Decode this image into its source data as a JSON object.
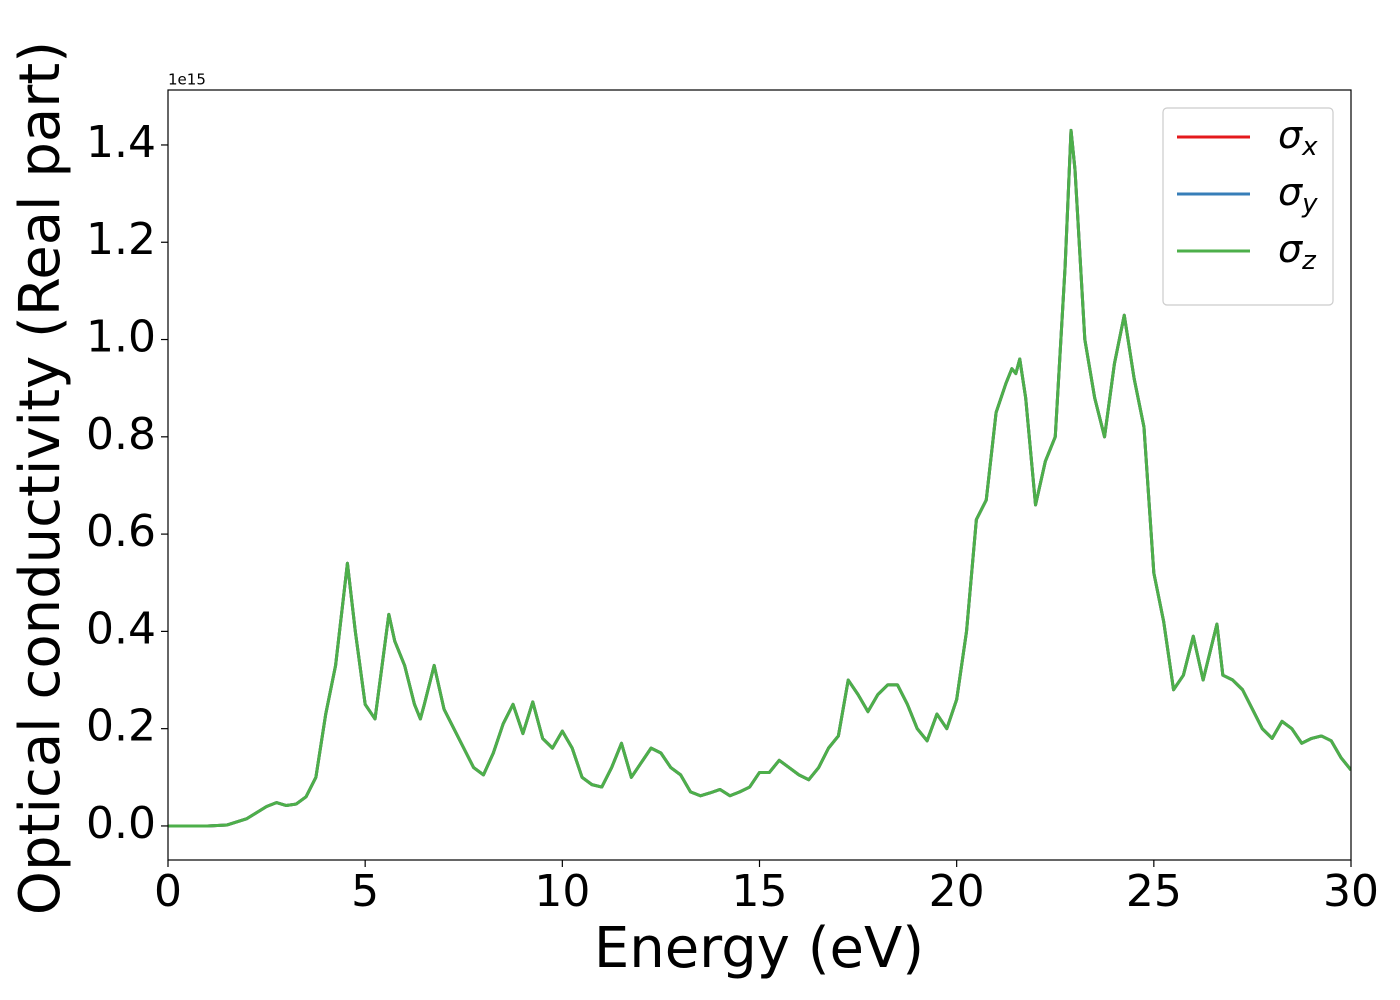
{
  "chart_data": {
    "type": "line",
    "xlabel": "Energy (eV)",
    "ylabel": "Optical conductivity (Real part)",
    "y_offset_label": "1e15",
    "x": [
      0,
      1,
      1.5,
      2,
      2.5,
      2.75,
      3,
      3.25,
      3.5,
      3.75,
      4,
      4.25,
      4.55,
      4.75,
      5,
      5.25,
      5.6,
      5.75,
      6,
      6.25,
      6.4,
      6.5,
      6.75,
      7,
      7.25,
      7.5,
      7.75,
      8,
      8.25,
      8.5,
      8.75,
      9,
      9.25,
      9.5,
      9.75,
      10,
      10.25,
      10.5,
      10.75,
      11,
      11.25,
      11.5,
      11.75,
      12,
      12.25,
      12.5,
      12.75,
      13,
      13.25,
      13.5,
      13.75,
      14,
      14.25,
      14.5,
      14.75,
      15,
      15.25,
      15.5,
      15.75,
      16,
      16.25,
      16.5,
      16.75,
      17,
      17.25,
      17.5,
      17.75,
      18,
      18.25,
      18.5,
      18.75,
      19,
      19.25,
      19.5,
      19.75,
      20,
      20.25,
      20.5,
      20.75,
      21,
      21.25,
      21.4,
      21.5,
      21.6,
      21.75,
      22,
      22.25,
      22.5,
      22.75,
      22.9,
      23,
      23.25,
      23.5,
      23.75,
      24,
      24.25,
      24.5,
      24.75,
      25,
      25.25,
      25.5,
      25.75,
      26,
      26.25,
      26.6,
      26.75,
      27,
      27.25,
      27.5,
      27.75,
      28,
      28.25,
      28.5,
      28.75,
      29,
      29.25,
      29.5,
      29.75,
      30
    ],
    "series": [
      {
        "name": "σx",
        "color": "#e41a1c",
        "values": [
          0,
          0,
          0.002,
          0.015,
          0.04,
          0.048,
          0.042,
          0.045,
          0.06,
          0.1,
          0.23,
          0.33,
          0.54,
          0.4,
          0.25,
          0.22,
          0.435,
          0.38,
          0.33,
          0.25,
          0.22,
          0.25,
          0.33,
          0.24,
          0.2,
          0.16,
          0.12,
          0.105,
          0.15,
          0.21,
          0.25,
          0.19,
          0.255,
          0.18,
          0.16,
          0.195,
          0.16,
          0.1,
          0.085,
          0.08,
          0.12,
          0.17,
          0.1,
          0.13,
          0.16,
          0.15,
          0.12,
          0.105,
          0.07,
          0.062,
          0.068,
          0.075,
          0.062,
          0.07,
          0.08,
          0.11,
          0.11,
          0.135,
          0.12,
          0.105,
          0.095,
          0.12,
          0.16,
          0.185,
          0.3,
          0.27,
          0.235,
          0.27,
          0.29,
          0.29,
          0.25,
          0.2,
          0.175,
          0.23,
          0.2,
          0.26,
          0.4,
          0.63,
          0.67,
          0.85,
          0.91,
          0.94,
          0.93,
          0.96,
          0.88,
          0.66,
          0.75,
          0.8,
          1.15,
          1.43,
          1.35,
          1.0,
          0.88,
          0.8,
          0.95,
          1.05,
          0.92,
          0.82,
          0.52,
          0.42,
          0.28,
          0.31,
          0.39,
          0.3,
          0.415,
          0.31,
          0.3,
          0.28,
          0.24,
          0.2,
          0.18,
          0.215,
          0.2,
          0.17,
          0.18,
          0.185,
          0.175,
          0.14,
          0.115
        ]
      },
      {
        "name": "σy",
        "color": "#377eb8",
        "values": [
          0,
          0,
          0.002,
          0.015,
          0.04,
          0.048,
          0.042,
          0.045,
          0.06,
          0.1,
          0.23,
          0.33,
          0.54,
          0.4,
          0.25,
          0.22,
          0.435,
          0.38,
          0.33,
          0.25,
          0.22,
          0.25,
          0.33,
          0.24,
          0.2,
          0.16,
          0.12,
          0.105,
          0.15,
          0.21,
          0.25,
          0.19,
          0.255,
          0.18,
          0.16,
          0.195,
          0.16,
          0.1,
          0.085,
          0.08,
          0.12,
          0.17,
          0.1,
          0.13,
          0.16,
          0.15,
          0.12,
          0.105,
          0.07,
          0.062,
          0.068,
          0.075,
          0.062,
          0.07,
          0.08,
          0.11,
          0.11,
          0.135,
          0.12,
          0.105,
          0.095,
          0.12,
          0.16,
          0.185,
          0.3,
          0.27,
          0.235,
          0.27,
          0.29,
          0.29,
          0.25,
          0.2,
          0.175,
          0.23,
          0.2,
          0.26,
          0.4,
          0.63,
          0.67,
          0.85,
          0.91,
          0.94,
          0.93,
          0.96,
          0.88,
          0.66,
          0.75,
          0.8,
          1.15,
          1.43,
          1.35,
          1.0,
          0.88,
          0.8,
          0.95,
          1.05,
          0.92,
          0.82,
          0.52,
          0.42,
          0.28,
          0.31,
          0.39,
          0.3,
          0.415,
          0.31,
          0.3,
          0.28,
          0.24,
          0.2,
          0.18,
          0.215,
          0.2,
          0.17,
          0.18,
          0.185,
          0.175,
          0.14,
          0.115
        ]
      },
      {
        "name": "σz",
        "color": "#4daf4a",
        "values": [
          0,
          0,
          0.002,
          0.015,
          0.04,
          0.048,
          0.042,
          0.045,
          0.06,
          0.1,
          0.23,
          0.33,
          0.54,
          0.4,
          0.25,
          0.22,
          0.435,
          0.38,
          0.33,
          0.25,
          0.22,
          0.25,
          0.33,
          0.24,
          0.2,
          0.16,
          0.12,
          0.105,
          0.15,
          0.21,
          0.25,
          0.19,
          0.255,
          0.18,
          0.16,
          0.195,
          0.16,
          0.1,
          0.085,
          0.08,
          0.12,
          0.17,
          0.1,
          0.13,
          0.16,
          0.15,
          0.12,
          0.105,
          0.07,
          0.062,
          0.068,
          0.075,
          0.062,
          0.07,
          0.08,
          0.11,
          0.11,
          0.135,
          0.12,
          0.105,
          0.095,
          0.12,
          0.16,
          0.185,
          0.3,
          0.27,
          0.235,
          0.27,
          0.29,
          0.29,
          0.25,
          0.2,
          0.175,
          0.23,
          0.2,
          0.26,
          0.4,
          0.63,
          0.67,
          0.85,
          0.91,
          0.94,
          0.93,
          0.96,
          0.88,
          0.66,
          0.75,
          0.8,
          1.15,
          1.43,
          1.35,
          1.0,
          0.88,
          0.8,
          0.95,
          1.05,
          0.92,
          0.82,
          0.52,
          0.42,
          0.28,
          0.31,
          0.39,
          0.3,
          0.415,
          0.31,
          0.3,
          0.28,
          0.24,
          0.2,
          0.18,
          0.215,
          0.2,
          0.17,
          0.18,
          0.185,
          0.175,
          0.14,
          0.115
        ]
      }
    ],
    "xlim": [
      0,
      30
    ],
    "xticks": [
      0,
      5,
      10,
      15,
      20,
      25,
      30
    ],
    "ylim": [
      -0.07,
      1.513
    ],
    "yticks": [
      {
        "value": 0,
        "label": "0.0"
      },
      {
        "value": 0.2,
        "label": "0.2"
      },
      {
        "value": 0.4,
        "label": "0.4"
      },
      {
        "value": 0.6,
        "label": "0.6"
      },
      {
        "value": 0.8,
        "label": "0.8"
      },
      {
        "value": 1.0,
        "label": "1.0"
      },
      {
        "value": 1.2,
        "label": "1.2"
      },
      {
        "value": 1.4,
        "label": "1.4"
      }
    ],
    "grid": false,
    "legend": "upper right"
  }
}
